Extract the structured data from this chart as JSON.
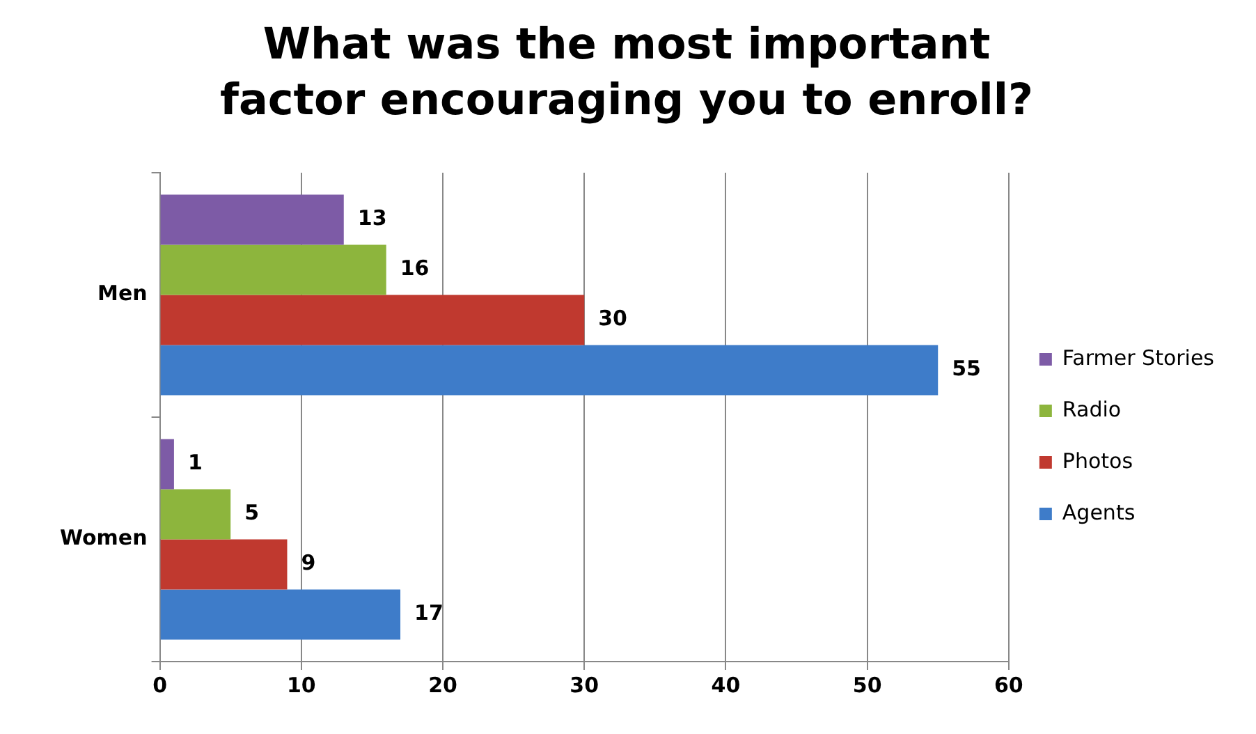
{
  "chart_data": {
    "type": "bar",
    "orientation": "horizontal",
    "title": "What was the most important factor encouraging you to enroll?",
    "categories": [
      "Men",
      "Women"
    ],
    "series": [
      {
        "name": "Farmer Stories",
        "color": "#7d5ba6",
        "values": [
          13,
          1
        ]
      },
      {
        "name": "Radio",
        "color": "#8db53d",
        "values": [
          16,
          5
        ]
      },
      {
        "name": "Photos",
        "color": "#c0392f",
        "values": [
          30,
          9
        ]
      },
      {
        "name": "Agents",
        "color": "#3e7cc9",
        "values": [
          55,
          17
        ]
      }
    ],
    "xlim": [
      0,
      60
    ],
    "xticks": [
      0,
      10,
      20,
      30,
      40,
      50,
      60
    ],
    "grid": "x",
    "legend": "right",
    "data_labels": true
  }
}
